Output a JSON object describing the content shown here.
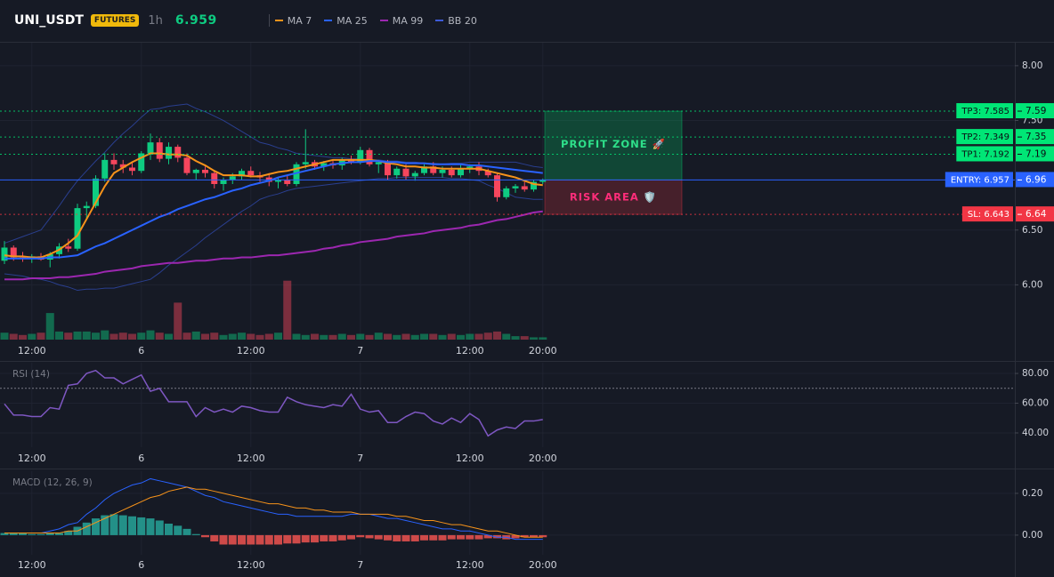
{
  "header": {
    "symbol": "UNI_USDT",
    "badge": "FUTURES",
    "interval": "1h",
    "price": 6.959
  },
  "chart_data": [
    {
      "type": "candlestick",
      "categories": [
        null,
        null,
        null,
        "12:00",
        null,
        null,
        null,
        null,
        null,
        null,
        null,
        null,
        null,
        null,
        null,
        "6",
        null,
        null,
        null,
        null,
        null,
        null,
        null,
        null,
        null,
        null,
        null,
        "12:00",
        null,
        null,
        null,
        null,
        null,
        null,
        null,
        null,
        null,
        null,
        null,
        "7",
        null,
        null,
        null,
        null,
        null,
        null,
        null,
        null,
        null,
        null,
        null,
        "12:00",
        null,
        null,
        null,
        null,
        null,
        null,
        null,
        "20:00"
      ],
      "open": [
        6.22,
        6.34,
        6.25,
        6.24,
        6.26,
        6.23,
        6.28,
        6.35,
        6.33,
        6.7,
        6.72,
        6.97,
        7.14,
        7.1,
        7.07,
        7.04,
        7.2,
        7.3,
        7.15,
        7.26,
        7.16,
        7.02,
        7.05,
        7.02,
        6.92,
        6.96,
        6.99,
        7.04,
        7.0,
        6.98,
        6.94,
        6.96,
        6.92,
        7.1,
        7.12,
        7.08,
        7.11,
        7.09,
        7.14,
        7.12,
        7.23,
        7.1,
        7.12,
        7.0,
        7.06,
        6.99,
        7.02,
        7.08,
        7.02,
        7.05,
        7.0,
        7.06,
        7.08,
        7.04,
        7.0,
        6.8,
        6.88,
        6.9,
        6.87,
        6.94
      ],
      "high": [
        6.4,
        6.36,
        6.3,
        6.28,
        6.29,
        6.3,
        6.38,
        6.42,
        6.74,
        6.76,
        7.0,
        7.2,
        7.2,
        7.14,
        7.12,
        7.22,
        7.38,
        7.34,
        7.3,
        7.28,
        7.2,
        7.06,
        7.08,
        7.04,
        6.98,
        7.02,
        7.06,
        7.08,
        7.03,
        7.02,
        6.98,
        7.0,
        7.12,
        7.42,
        7.14,
        7.13,
        7.14,
        7.16,
        7.18,
        7.26,
        7.25,
        7.14,
        7.14,
        7.08,
        7.1,
        7.04,
        7.1,
        7.12,
        7.08,
        7.08,
        7.1,
        7.1,
        7.12,
        7.06,
        7.02,
        6.9,
        6.92,
        6.94,
        6.96,
        6.97
      ],
      "low": [
        6.19,
        6.22,
        6.21,
        6.2,
        6.22,
        6.16,
        6.24,
        6.3,
        6.31,
        6.6,
        6.7,
        6.94,
        7.05,
        7.02,
        7.0,
        7.02,
        7.14,
        7.12,
        7.1,
        7.12,
        7.0,
        6.96,
        6.98,
        6.88,
        6.86,
        6.92,
        6.96,
        6.98,
        6.94,
        6.9,
        6.88,
        6.9,
        6.9,
        7.06,
        7.05,
        7.04,
        7.06,
        7.05,
        7.1,
        7.1,
        7.08,
        7.02,
        6.96,
        6.97,
        6.96,
        6.95,
        7.0,
        7.0,
        6.98,
        6.98,
        6.98,
        7.02,
        7.0,
        6.98,
        6.76,
        6.78,
        6.84,
        6.85,
        6.85,
        6.92
      ],
      "close": [
        6.34,
        6.25,
        6.24,
        6.26,
        6.23,
        6.28,
        6.35,
        6.33,
        6.7,
        6.72,
        6.97,
        7.14,
        7.1,
        7.07,
        7.04,
        7.2,
        7.3,
        7.15,
        7.26,
        7.16,
        7.02,
        7.05,
        7.02,
        6.92,
        6.96,
        6.99,
        7.04,
        7.0,
        6.98,
        6.94,
        6.96,
        6.92,
        7.1,
        7.12,
        7.08,
        7.11,
        7.09,
        7.14,
        7.12,
        7.23,
        7.1,
        7.12,
        7.0,
        7.06,
        6.99,
        7.02,
        7.08,
        7.02,
        7.05,
        7.0,
        7.06,
        7.08,
        7.04,
        7.0,
        6.8,
        6.88,
        6.9,
        6.87,
        6.94,
        6.96
      ],
      "up_color": "#0ecb81",
      "down_color": "#f6465d",
      "volumes": [
        6,
        5,
        4,
        5,
        6,
        23,
        7,
        6,
        7,
        7,
        6,
        8,
        5,
        6,
        5,
        6,
        8,
        6,
        5,
        32,
        6,
        7,
        5,
        6,
        4,
        5,
        6,
        5,
        4,
        5,
        6,
        51,
        5,
        4,
        5,
        4,
        4,
        5,
        4,
        5,
        4,
        6,
        5,
        4,
        5,
        4,
        5,
        5,
        4,
        5,
        4,
        5,
        5,
        6,
        7,
        5,
        3,
        3,
        2,
        2
      ],
      "volume_ylim": [
        0,
        100
      ],
      "series": [
        {
          "name": "MA 7",
          "color": "#f7931a",
          "values": [
            6.27,
            6.26,
            6.26,
            6.25,
            6.25,
            6.28,
            6.32,
            6.38,
            6.45,
            6.6,
            6.75,
            6.9,
            7.02,
            7.07,
            7.12,
            7.16,
            7.2,
            7.2,
            7.19,
            7.19,
            7.18,
            7.13,
            7.09,
            7.04,
            7.0,
            7.0,
            7.0,
            6.99,
            6.99,
            7.01,
            7.03,
            7.04,
            7.06,
            7.08,
            7.1,
            7.12,
            7.14,
            7.14,
            7.14,
            7.14,
            7.14,
            7.13,
            7.11,
            7.1,
            7.08,
            7.08,
            7.07,
            7.07,
            7.06,
            7.06,
            7.06,
            7.06,
            7.06,
            7.04,
            7.02,
            7.0,
            6.98,
            6.95,
            6.92,
            6.91
          ]
        },
        {
          "name": "MA 25",
          "color": "#2962ff",
          "values": [
            6.24,
            6.24,
            6.24,
            6.24,
            6.24,
            6.25,
            6.25,
            6.26,
            6.27,
            6.31,
            6.35,
            6.38,
            6.42,
            6.46,
            6.5,
            6.54,
            6.58,
            6.62,
            6.65,
            6.69,
            6.72,
            6.75,
            6.78,
            6.8,
            6.83,
            6.86,
            6.88,
            6.91,
            6.93,
            6.95,
            6.98,
            7.0,
            7.02,
            7.04,
            7.06,
            7.08,
            7.1,
            7.11,
            7.12,
            7.12,
            7.13,
            7.13,
            7.12,
            7.12,
            7.11,
            7.11,
            7.11,
            7.1,
            7.1,
            7.1,
            7.1,
            7.09,
            7.09,
            7.08,
            7.07,
            7.06,
            7.05,
            7.04,
            7.03,
            7.02
          ]
        },
        {
          "name": "MA 99",
          "color": "#9c27b0",
          "values": [
            6.05,
            6.05,
            6.05,
            6.06,
            6.06,
            6.06,
            6.07,
            6.07,
            6.08,
            6.09,
            6.1,
            6.12,
            6.13,
            6.14,
            6.15,
            6.17,
            6.18,
            6.19,
            6.2,
            6.2,
            6.21,
            6.22,
            6.22,
            6.23,
            6.24,
            6.24,
            6.25,
            6.25,
            6.26,
            6.27,
            6.27,
            6.28,
            6.29,
            6.3,
            6.31,
            6.33,
            6.34,
            6.36,
            6.37,
            6.39,
            6.4,
            6.41,
            6.42,
            6.44,
            6.45,
            6.46,
            6.47,
            6.49,
            6.5,
            6.51,
            6.52,
            6.54,
            6.55,
            6.57,
            6.59,
            6.6,
            6.62,
            6.64,
            6.66,
            6.67
          ]
        },
        {
          "name": "BB 20",
          "color": "#2a3f8f",
          "values": [
            6.38,
            6.41,
            6.44,
            6.47,
            6.5,
            6.61,
            6.72,
            6.84,
            6.95,
            7.04,
            7.13,
            7.21,
            7.3,
            7.38,
            7.45,
            7.53,
            7.6,
            7.61,
            7.63,
            7.64,
            7.65,
            7.61,
            7.58,
            7.54,
            7.5,
            7.45,
            7.4,
            7.35,
            7.3,
            7.28,
            7.25,
            7.23,
            7.2,
            7.19,
            7.18,
            7.17,
            7.16,
            7.16,
            7.15,
            7.15,
            7.14,
            7.14,
            7.13,
            7.13,
            7.12,
            7.12,
            7.11,
            7.11,
            7.1,
            7.11,
            7.11,
            7.12,
            7.12,
            7.12,
            7.12,
            7.12,
            7.12,
            7.1,
            7.08,
            7.07
          ],
          "lower": [
            6.1,
            6.09,
            6.08,
            6.06,
            6.05,
            6.03,
            6.0,
            5.98,
            5.95,
            5.96,
            5.96,
            5.97,
            5.97,
            5.99,
            6.01,
            6.03,
            6.05,
            6.11,
            6.18,
            6.24,
            6.3,
            6.36,
            6.43,
            6.49,
            6.55,
            6.61,
            6.67,
            6.72,
            6.78,
            6.81,
            6.83,
            6.86,
            6.88,
            6.89,
            6.9,
            6.91,
            6.92,
            6.93,
            6.94,
            6.95,
            6.96,
            6.97,
            6.97,
            6.98,
            6.98,
            6.98,
            6.98,
            6.98,
            6.98,
            6.97,
            6.97,
            6.96,
            6.95,
            6.91,
            6.88,
            6.84,
            6.8,
            6.79,
            6.78,
            6.78
          ]
        }
      ],
      "ylim": [
        5.5,
        8.21
      ],
      "yticks": [
        {
          "value": 8,
          "label": "8.00"
        },
        {
          "value": 7.5,
          "label": "7.50"
        },
        {
          "value": 6.5,
          "label": "6.50"
        },
        {
          "value": 6,
          "label": "6.00"
        }
      ],
      "grid": true,
      "levels": [
        {
          "name": "TP3: 7.585",
          "price": {
            "value": 7.585,
            "label": "7.59"
          },
          "color": "#00e676",
          "style": "dotted"
        },
        {
          "name": "TP2: 7.349",
          "price": {
            "value": 7.349,
            "label": "7.35"
          },
          "color": "#00e676",
          "style": "dotted"
        },
        {
          "name": "TP1: 7.192",
          "price": {
            "value": 7.192,
            "label": "7.19"
          },
          "color": "#00e676",
          "style": "dotted"
        },
        {
          "name": "ENTRY: 6.957",
          "price": {
            "value": 6.957,
            "label": "6.96"
          },
          "color": "#2962ff",
          "style": "solid"
        },
        {
          "name": "SL: 6.643",
          "price": {
            "value": 6.643,
            "label": "6.64"
          },
          "color": "#f23645",
          "style": "dotted"
        }
      ],
      "zones": [
        {
          "label": "PROFIT ZONE 🚀",
          "from": 7.585,
          "to": 6.957,
          "color": "#00e676"
        },
        {
          "label": "RISK AREA 🛡️",
          "from": 6.957,
          "to": 6.643,
          "color": "#f23645"
        }
      ]
    },
    {
      "type": "line",
      "title": "RSI (14)",
      "categories": [
        null,
        null,
        null,
        "12:00",
        null,
        null,
        null,
        null,
        null,
        null,
        null,
        null,
        null,
        null,
        null,
        "6",
        null,
        null,
        null,
        null,
        null,
        null,
        null,
        null,
        null,
        null,
        null,
        "12:00",
        null,
        null,
        null,
        null,
        null,
        null,
        null,
        null,
        null,
        null,
        null,
        "7",
        null,
        null,
        null,
        null,
        null,
        null,
        null,
        null,
        null,
        null,
        null,
        "12:00",
        null,
        null,
        null,
        null,
        null,
        null,
        null,
        "20:00"
      ],
      "values": [
        59.5,
        52,
        52,
        51,
        51,
        57,
        56,
        72,
        73,
        80,
        82,
        77,
        77,
        73,
        76,
        79,
        68,
        70,
        61,
        61,
        61,
        51,
        57,
        54,
        56,
        54,
        58,
        57,
        55,
        54,
        54,
        64,
        61,
        59,
        58,
        57,
        59,
        58,
        66,
        56,
        54,
        55,
        47,
        47,
        51,
        54,
        53,
        48,
        46,
        50,
        47,
        53,
        49,
        38,
        42,
        44,
        43,
        48,
        48,
        49
      ],
      "color": "#7e57c2",
      "ylim": [
        30.4,
        87.2
      ],
      "yticks": [
        {
          "value": 80,
          "label": "80.00"
        },
        {
          "value": 60,
          "label": "60.00"
        },
        {
          "value": 40,
          "label": "40.00"
        }
      ],
      "reference_line": 70,
      "grid": true
    },
    {
      "type": "macd",
      "title": "MACD (12, 26, 9)",
      "categories": [
        null,
        null,
        null,
        "12:00",
        null,
        null,
        null,
        null,
        null,
        null,
        null,
        null,
        null,
        null,
        null,
        "6",
        null,
        null,
        null,
        null,
        null,
        null,
        null,
        null,
        null,
        null,
        null,
        "12:00",
        null,
        null,
        null,
        null,
        null,
        null,
        null,
        null,
        null,
        null,
        null,
        "7",
        null,
        null,
        null,
        null,
        null,
        null,
        null,
        null,
        null,
        null,
        null,
        "12:00",
        null,
        null,
        null,
        null,
        null,
        null,
        null,
        "20:00"
      ],
      "histogram": [
        0.01,
        0.01,
        0.01,
        0.005,
        0.005,
        0.01,
        0.01,
        0.02,
        0.04,
        0.06,
        0.08,
        0.095,
        0.1,
        0.095,
        0.09,
        0.085,
        0.08,
        0.07,
        0.055,
        0.045,
        0.03,
        0.005,
        -0.01,
        -0.03,
        -0.045,
        -0.045,
        -0.045,
        -0.045,
        -0.045,
        -0.045,
        -0.045,
        -0.04,
        -0.04,
        -0.035,
        -0.035,
        -0.03,
        -0.03,
        -0.025,
        -0.02,
        -0.01,
        -0.015,
        -0.02,
        -0.025,
        -0.03,
        -0.03,
        -0.03,
        -0.025,
        -0.025,
        -0.025,
        -0.02,
        -0.02,
        -0.02,
        -0.02,
        -0.015,
        -0.015,
        -0.02,
        -0.015,
        -0.01,
        -0.01,
        -0.01
      ],
      "up_color": "#26a69a",
      "down_color": "#ef5350",
      "lines": [
        {
          "color": "#2962ff",
          "values": [
            0.01,
            0.01,
            0.01,
            0.01,
            0.01,
            0.02,
            0.03,
            0.05,
            0.06,
            0.1,
            0.13,
            0.17,
            0.2,
            0.22,
            0.24,
            0.25,
            0.27,
            0.26,
            0.25,
            0.24,
            0.23,
            0.21,
            0.19,
            0.18,
            0.16,
            0.15,
            0.14,
            0.13,
            0.12,
            0.11,
            0.1,
            0.1,
            0.09,
            0.09,
            0.09,
            0.09,
            0.09,
            0.09,
            0.1,
            0.1,
            0.1,
            0.09,
            0.08,
            0.08,
            0.07,
            0.06,
            0.05,
            0.04,
            0.03,
            0.03,
            0.02,
            0.02,
            0.01,
            0.0,
            -0.01,
            -0.01,
            -0.02,
            -0.02,
            -0.02,
            -0.02
          ]
        },
        {
          "color": "#f7931a",
          "values": [
            0.01,
            0.01,
            0.01,
            0.01,
            0.01,
            0.01,
            0.01,
            0.02,
            0.02,
            0.04,
            0.06,
            0.08,
            0.1,
            0.12,
            0.14,
            0.16,
            0.18,
            0.19,
            0.21,
            0.22,
            0.23,
            0.22,
            0.22,
            0.21,
            0.2,
            0.19,
            0.18,
            0.17,
            0.16,
            0.15,
            0.15,
            0.14,
            0.13,
            0.13,
            0.12,
            0.12,
            0.11,
            0.11,
            0.11,
            0.1,
            0.1,
            0.1,
            0.1,
            0.09,
            0.09,
            0.08,
            0.07,
            0.07,
            0.06,
            0.05,
            0.05,
            0.04,
            0.03,
            0.02,
            0.02,
            0.01,
            0.0,
            -0.01,
            -0.01,
            -0.01
          ]
        }
      ],
      "ylim": [
        -0.094,
        0.306
      ],
      "yticks": [
        {
          "value": 0.2,
          "label": "0.20"
        },
        {
          "value": 0,
          "label": "0.00"
        }
      ],
      "grid": true
    }
  ]
}
